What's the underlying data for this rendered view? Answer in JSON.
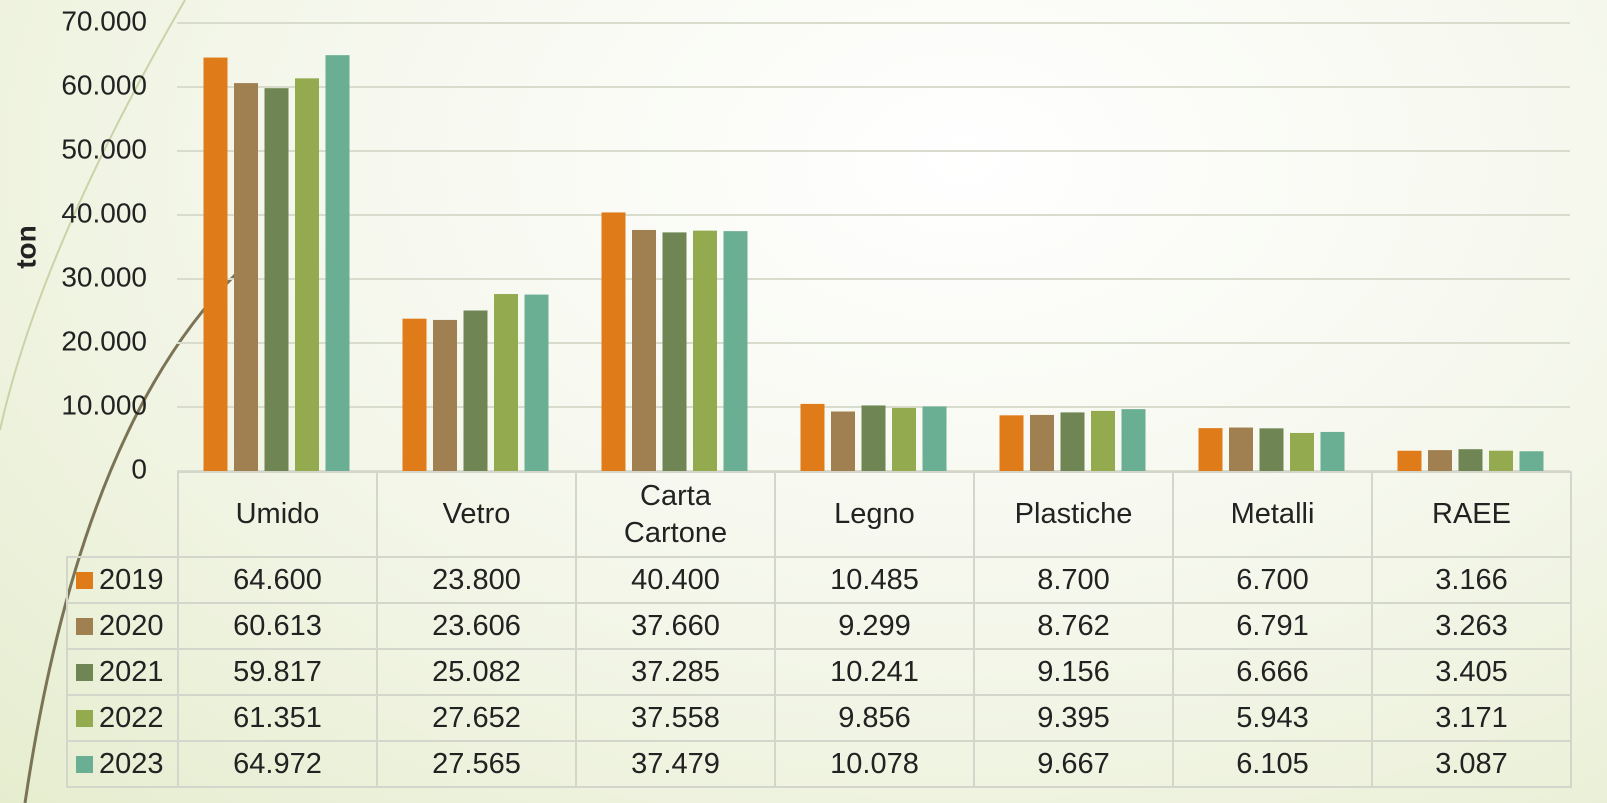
{
  "chart_data": {
    "type": "bar",
    "y_label": "ton",
    "categories": [
      "Umido",
      "Vetro",
      "Carta Cartone",
      "Legno",
      "Plastiche",
      "Metalli",
      "RAEE"
    ],
    "series": [
      {
        "name": "2019",
        "color": "#e07b1a",
        "values": [
          64600,
          23800,
          40400,
          10485,
          8700,
          6700,
          3166
        ],
        "value_labels": [
          "64.600",
          "23.800",
          "40.400",
          "10.485",
          "8.700",
          "6.700",
          "3.166"
        ]
      },
      {
        "name": "2020",
        "color": "#a08050",
        "values": [
          60613,
          23606,
          37660,
          9299,
          8762,
          6791,
          3263
        ],
        "value_labels": [
          "60.613",
          "23.606",
          "37.660",
          "9.299",
          "8.762",
          "6.791",
          "3.263"
        ]
      },
      {
        "name": "2021",
        "color": "#6f8553",
        "values": [
          59817,
          25082,
          37285,
          10241,
          9156,
          6666,
          3405
        ],
        "value_labels": [
          "59.817",
          "25.082",
          "37.285",
          "10.241",
          "9.156",
          "6.666",
          "3.405"
        ]
      },
      {
        "name": "2022",
        "color": "#93aa4e",
        "values": [
          61351,
          27652,
          37558,
          9856,
          9395,
          5943,
          3171
        ],
        "value_labels": [
          "61.351",
          "27.652",
          "37.558",
          "9.856",
          "9.395",
          "5.943",
          "3.171"
        ]
      },
      {
        "name": "2023",
        "color": "#6aae94",
        "values": [
          64972,
          27565,
          37479,
          10078,
          9667,
          6105,
          3087
        ],
        "value_labels": [
          "64.972",
          "27.565",
          "37.479",
          "10.078",
          "9.667",
          "6.105",
          "3.087"
        ]
      }
    ],
    "ylim": [
      0,
      70000
    ],
    "yticks": [
      0,
      {
        "value": 10000,
        "label": "10.000"
      },
      {
        "value": 20000,
        "label": "20.000"
      },
      {
        "value": 30000,
        "label": "30.000"
      },
      {
        "value": 40000,
        "label": "40.000"
      },
      {
        "value": 50000,
        "label": "50.000"
      },
      {
        "value": 60000,
        "label": "60.000"
      },
      {
        "value": 70000,
        "label": "70.000"
      }
    ],
    "grid": true
  }
}
